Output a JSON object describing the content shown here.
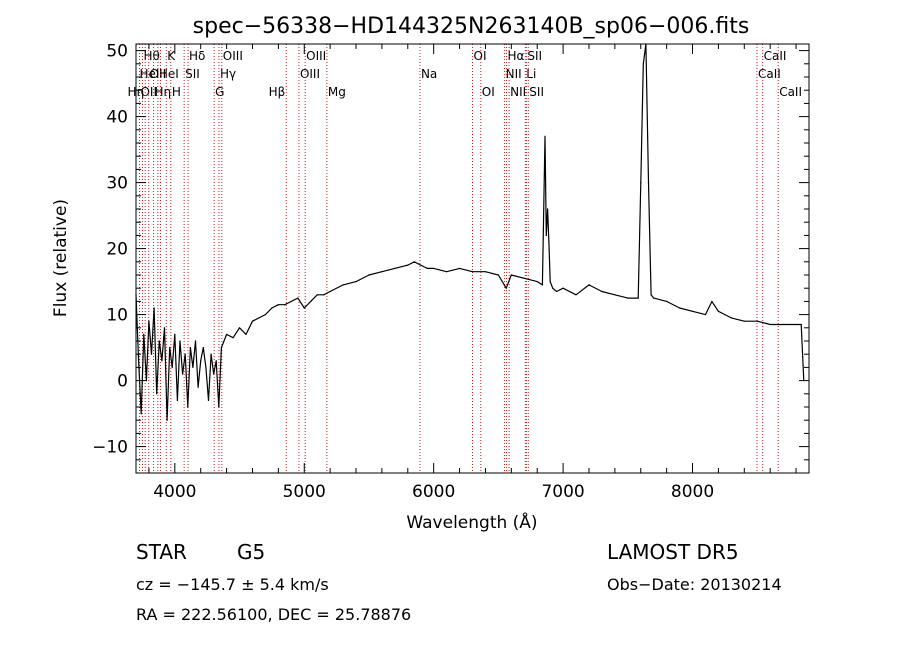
{
  "chart_data": {
    "type": "line",
    "title": "spec−56338−HD144325N263140B_sp06−006.fits",
    "xlabel": "Wavelength (Å)",
    "ylabel": "Flux (relative)",
    "xlim": [
      3700,
      8900
    ],
    "ylim": [
      -14,
      51
    ],
    "xticks": [
      {
        "v": 4000,
        "label": "4000"
      },
      {
        "v": 5000,
        "label": "5000"
      },
      {
        "v": 6000,
        "label": "6000"
      },
      {
        "v": 7000,
        "label": "7000"
      },
      {
        "v": 8000,
        "label": "8000"
      }
    ],
    "yticks": [
      {
        "v": -10,
        "label": "−10"
      },
      {
        "v": 0,
        "label": "0"
      },
      {
        "v": 10,
        "label": "10"
      },
      {
        "v": 20,
        "label": "20"
      },
      {
        "v": 30,
        "label": "30"
      },
      {
        "v": 40,
        "label": "40"
      },
      {
        "v": 50,
        "label": "50"
      }
    ],
    "grid": false,
    "line_color": "#000000",
    "marker_color": "#b22222",
    "series": [
      {
        "x": [
          3700,
          3720,
          3740,
          3760,
          3780,
          3800,
          3820,
          3840,
          3860,
          3880,
          3900,
          3920,
          3940,
          3960,
          3980,
          4000,
          4020,
          4040,
          4060,
          4080,
          4100,
          4120,
          4140,
          4160,
          4180,
          4200,
          4220,
          4240,
          4260,
          4280,
          4300,
          4320,
          4340,
          4360,
          4380,
          4400,
          4450,
          4500,
          4550,
          4600,
          4650,
          4700,
          4750,
          4800,
          4850,
          4900,
          4950,
          5000,
          5050,
          5100,
          5150,
          5200,
          5300,
          5400,
          5500,
          5600,
          5700,
          5800,
          5850,
          5900,
          5950,
          6000,
          6100,
          6200,
          6300,
          6400,
          6500,
          6560,
          6600,
          6700,
          6800,
          6840,
          6860,
          6870,
          6880,
          6890,
          6900,
          6920,
          6950,
          7000,
          7100,
          7200,
          7300,
          7400,
          7500,
          7580,
          7600,
          7620,
          7640,
          7660,
          7680,
          7700,
          7800,
          7900,
          8000,
          8100,
          8150,
          8200,
          8250,
          8300,
          8400,
          8500,
          8600,
          8700,
          8800,
          8840,
          8860
        ],
        "y": [
          13,
          3,
          -5,
          7,
          0,
          9,
          4,
          11,
          -2,
          6,
          3,
          8,
          -6,
          5,
          2,
          7,
          -3,
          6,
          1,
          4,
          -4,
          5,
          2,
          6,
          -1,
          3,
          5,
          2,
          -3,
          4,
          1,
          3,
          -4,
          5,
          6,
          7,
          6.5,
          8,
          7,
          9,
          9.5,
          10,
          11,
          11.5,
          11.5,
          12,
          12.5,
          11,
          12,
          13,
          13,
          13.5,
          14.5,
          15,
          16,
          16.5,
          17,
          17.5,
          18,
          17.5,
          17,
          17,
          16.5,
          17,
          16.5,
          16.5,
          16,
          14,
          16,
          15.5,
          15,
          14.5,
          37,
          22,
          26,
          21,
          15,
          14,
          13.5,
          14,
          13,
          14.5,
          13.5,
          13,
          12.5,
          12.5,
          30,
          48,
          51,
          30,
          13,
          12.5,
          12,
          11,
          10.5,
          10,
          12,
          10.5,
          10,
          9.5,
          9,
          9,
          8.5,
          8.5,
          8.5,
          8.5,
          0
        ]
      }
    ],
    "lines": [
      {
        "w": 3727,
        "label": "OII",
        "row": 2,
        "side": "right"
      },
      {
        "w": 3750,
        "label": "Hθ",
        "row": 0,
        "side": "right"
      },
      {
        "w": 3771,
        "label": "Hη",
        "row": 2,
        "side": "left"
      },
      {
        "w": 3798,
        "label": "OII",
        "row": 1,
        "side": "right"
      },
      {
        "w": 3835,
        "label": "Hη",
        "row": 2,
        "side": "right"
      },
      {
        "w": 3869,
        "label": "HeI",
        "row": 1,
        "side": "right"
      },
      {
        "w": 3889,
        "label": "HeI",
        "row": 1,
        "side": "left"
      },
      {
        "w": 3934,
        "label": "K",
        "row": 0,
        "side": "right"
      },
      {
        "w": 3969,
        "label": "H",
        "row": 2,
        "side": "right"
      },
      {
        "w": 4072,
        "label": "SII",
        "row": 1,
        "side": "right"
      },
      {
        "w": 4102,
        "label": "Hδ",
        "row": 0,
        "side": "right"
      },
      {
        "w": 4304,
        "label": "G",
        "row": 2,
        "side": "right"
      },
      {
        "w": 4341,
        "label": "Hγ",
        "row": 1,
        "side": "right"
      },
      {
        "w": 4363,
        "label": "OIII",
        "row": 0,
        "side": "right"
      },
      {
        "w": 4861,
        "label": "Hβ",
        "row": 2,
        "side": "left"
      },
      {
        "w": 4959,
        "label": "OIII",
        "row": 1,
        "side": "right"
      },
      {
        "w": 5007,
        "label": "OIII",
        "row": 0,
        "side": "right"
      },
      {
        "w": 5175,
        "label": "Mg",
        "row": 2,
        "side": "right"
      },
      {
        "w": 5894,
        "label": "Na",
        "row": 1,
        "side": "right"
      },
      {
        "w": 6300,
        "label": "OI",
        "row": 0,
        "side": "right"
      },
      {
        "w": 6364,
        "label": "OI",
        "row": 2,
        "side": "right"
      },
      {
        "w": 6548,
        "label": "NII",
        "row": 1,
        "side": "right"
      },
      {
        "w": 6563,
        "label": "Hα",
        "row": 0,
        "side": "right"
      },
      {
        "w": 6583,
        "label": "NII",
        "row": 2,
        "side": "right"
      },
      {
        "w": 6708,
        "label": "Li",
        "row": 1,
        "side": "right"
      },
      {
        "w": 6716,
        "label": "SII",
        "row": 0,
        "side": "right"
      },
      {
        "w": 6731,
        "label": "SII",
        "row": 2,
        "side": "right"
      },
      {
        "w": 8498,
        "label": "CaII",
        "row": 1,
        "side": "right"
      },
      {
        "w": 8542,
        "label": "CaII",
        "row": 0,
        "side": "right"
      },
      {
        "w": 8662,
        "label": "CaII",
        "row": 2,
        "side": "right"
      }
    ]
  },
  "info": {
    "class": "STAR",
    "subclass": "G5",
    "cz": "cz = −145.7 ± 5.4 km/s",
    "radec": "RA = 222.56100, DEC =  25.78876",
    "survey": "LAMOST DR5",
    "obsdate": "Obs−Date: 20130214"
  }
}
